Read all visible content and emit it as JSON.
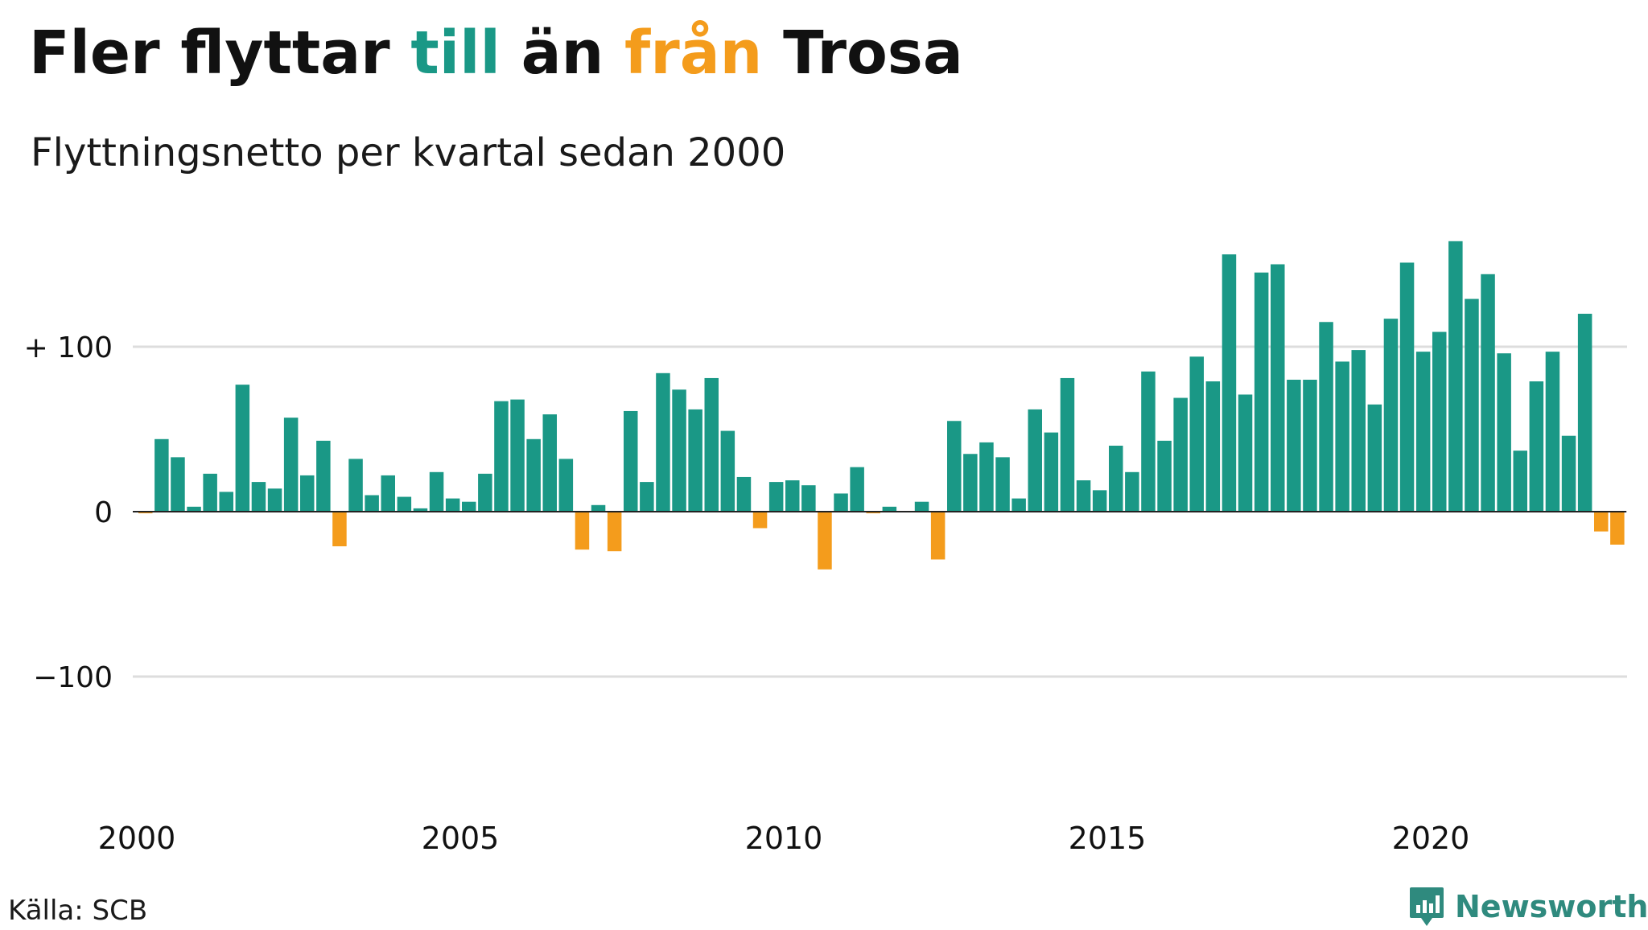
{
  "title": {
    "prefix": "Fler flyttar ",
    "till": "till",
    "middle": " än ",
    "fran": "från",
    "suffix": " Trosa"
  },
  "subtitle": "Flyttningsnetto per kvartal sedan 2000",
  "source": "Källa: SCB",
  "brand": {
    "name": "Newsworthy",
    "logo_icon": "newsworthy-logo-icon"
  },
  "colors": {
    "positive": "#1a9886",
    "negative": "#f49c1c",
    "grid": "#dddddd",
    "zero_line": "#222222",
    "text": "#111111"
  },
  "chart_data": {
    "type": "bar",
    "start_year": 2000,
    "periods_per_year": 4,
    "values": [
      -1,
      44,
      33,
      3,
      23,
      12,
      77,
      18,
      14,
      57,
      22,
      43,
      -21,
      32,
      10,
      22,
      9,
      2,
      24,
      8,
      6,
      23,
      67,
      68,
      44,
      59,
      32,
      -23,
      4,
      -24,
      61,
      18,
      84,
      74,
      62,
      81,
      49,
      21,
      -10,
      18,
      19,
      16,
      -35,
      11,
      27,
      -1,
      3,
      0,
      6,
      -29,
      55,
      35,
      42,
      33,
      8,
      62,
      48,
      81,
      19,
      13,
      40,
      24,
      85,
      43,
      69,
      94,
      79,
      156,
      71,
      145,
      150,
      80,
      80,
      115,
      91,
      98,
      65,
      117,
      151,
      97,
      109,
      164,
      129,
      144,
      96,
      37,
      79,
      97,
      46,
      120,
      -12,
      -20
    ],
    "x_ticks": [
      "2000",
      "2005",
      "2010",
      "2015",
      "2020"
    ],
    "y_ticks": [
      {
        "value": 100,
        "label": "+ 100"
      },
      {
        "value": 0,
        "label": "0"
      },
      {
        "value": -100,
        "label": "−100"
      }
    ],
    "ylim": [
      -180,
      175
    ],
    "grid": true
  }
}
